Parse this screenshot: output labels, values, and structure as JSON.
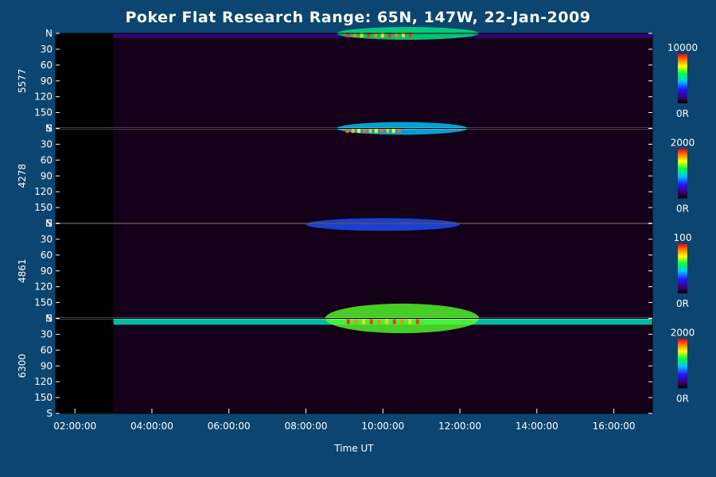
{
  "title": "Poker Flat Research Range: 65N, 147W, 22-Jan-2009",
  "chart_data": {
    "type": "heatmap",
    "title": "Poker Flat Research Range: 65N, 147W, 22-Jan-2009",
    "xlabel": "Time UT",
    "x_ticks": [
      "02:00:00",
      "04:00:00",
      "06:00:00",
      "08:00:00",
      "10:00:00",
      "12:00:00",
      "14:00:00",
      "16:00:00"
    ],
    "x_tick_hours": [
      2,
      4,
      6,
      8,
      10,
      12,
      14,
      16
    ],
    "xlim_hours": [
      1.5,
      17.0
    ],
    "data_start_hour": 3.0,
    "y_ticks": [
      "N",
      "30",
      "60",
      "90",
      "120",
      "150",
      "S"
    ],
    "y_tick_values": [
      0,
      30,
      60,
      90,
      120,
      150,
      180
    ],
    "ylim": [
      0,
      180
    ],
    "panels": [
      {
        "ylabel": "5577",
        "colorbar_max": "10000",
        "colorbar_min": "0R",
        "features": [
          {
            "kind": "band",
            "t0": 3.0,
            "t1": 17.0,
            "y0": 0,
            "y1": 8,
            "level": 0.18
          },
          {
            "kind": "arc",
            "t0": 8.8,
            "t1": 12.5,
            "y0": 0,
            "y1": 12,
            "level": 0.55
          },
          {
            "kind": "spots",
            "t0": 9.0,
            "t1": 10.8,
            "y": 3,
            "level": 0.95
          }
        ]
      },
      {
        "ylabel": "4278",
        "colorbar_max": "2000",
        "colorbar_min": "0R",
        "features": [
          {
            "kind": "arc",
            "t0": 8.8,
            "t1": 12.2,
            "y0": 0,
            "y1": 12,
            "level": 0.45
          },
          {
            "kind": "spots",
            "t0": 9.0,
            "t1": 10.5,
            "y": 4,
            "level": 0.9
          }
        ]
      },
      {
        "ylabel": "4861",
        "colorbar_max": "100",
        "colorbar_min": "0R",
        "features": [
          {
            "kind": "arc",
            "t0": 8.0,
            "t1": 12.0,
            "y0": 2,
            "y1": 14,
            "level": 0.35
          }
        ]
      },
      {
        "ylabel": "6300",
        "colorbar_max": "2000",
        "colorbar_min": "0R",
        "features": [
          {
            "kind": "band",
            "t0": 3.0,
            "t1": 17.0,
            "y0": 0,
            "y1": 12,
            "level": 0.5
          },
          {
            "kind": "arc",
            "t0": 8.5,
            "t1": 12.5,
            "y0": 0,
            "y1": 28,
            "level": 0.65
          },
          {
            "kind": "spots",
            "t0": 9.0,
            "t1": 11.0,
            "y": 6,
            "level": 0.95
          }
        ]
      }
    ]
  },
  "colors": {
    "background": "#0b4570",
    "plot_background": "#140018",
    "divider": "#ffffff",
    "text": "#ffffff"
  }
}
